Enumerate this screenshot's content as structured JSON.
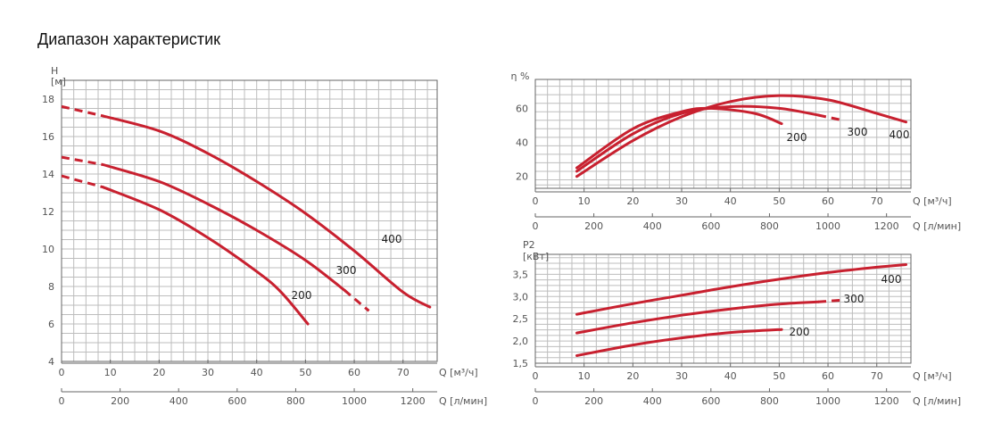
{
  "page": {
    "title": "Диапазон характеристик"
  },
  "colors": {
    "curve": "#c8202f",
    "grid": "#bdbdbd",
    "frame": "#666666"
  },
  "chart_data": [
    {
      "id": "head",
      "type": "line",
      "ylabel_lines": [
        "H",
        "[м]"
      ],
      "xlabel": "Q [м³/ч]",
      "xlabel2": "Q [л/мин]",
      "xlim": [
        0,
        77
      ],
      "ylim": [
        4,
        19
      ],
      "xticks": [
        0,
        10,
        20,
        30,
        40,
        50,
        60,
        70
      ],
      "yticks": [
        4,
        6,
        8,
        10,
        12,
        14,
        16,
        18
      ],
      "ytick_labels": [
        "4",
        "6",
        "8",
        "10",
        "12",
        "14",
        "16",
        "18"
      ],
      "x2ticks": [
        0,
        200,
        400,
        600,
        800,
        1000,
        1200
      ],
      "series": [
        {
          "name": "400",
          "solid": [
            [
              8.5,
              17.1
            ],
            [
              20,
              16.3
            ],
            [
              30,
              15.1
            ],
            [
              40,
              13.6
            ],
            [
              50,
              11.9
            ],
            [
              60,
              9.9
            ],
            [
              70,
              7.7
            ],
            [
              75.5,
              6.9
            ]
          ],
          "dashed": [
            [
              0,
              17.6
            ],
            [
              8.5,
              17.1
            ]
          ]
        },
        {
          "name": "300",
          "solid": [
            [
              8.5,
              14.5
            ],
            [
              20,
              13.6
            ],
            [
              30,
              12.4
            ],
            [
              40,
              11.0
            ],
            [
              50,
              9.4
            ],
            [
              58,
              7.8
            ]
          ],
          "dashed": [
            [
              0,
              14.9
            ],
            [
              8.5,
              14.5
            ]
          ],
          "dashed_end": [
            [
              58,
              7.8
            ],
            [
              63,
              6.7
            ]
          ]
        },
        {
          "name": "200",
          "solid": [
            [
              8.5,
              13.3
            ],
            [
              20,
              12.1
            ],
            [
              30,
              10.6
            ],
            [
              40,
              8.8
            ],
            [
              45,
              7.7
            ],
            [
              50.5,
              6.0
            ]
          ],
          "dashed": [
            [
              0,
              13.9
            ],
            [
              8.5,
              13.3
            ]
          ]
        }
      ]
    },
    {
      "id": "efficiency",
      "type": "line",
      "ylabel_lines": [
        "η %"
      ],
      "xlabel": "Q [м³/ч]",
      "xlabel2": "Q [л/мин]",
      "xlim": [
        0,
        77
      ],
      "ylim": [
        13,
        77
      ],
      "xticks": [
        0,
        10,
        20,
        30,
        40,
        50,
        60,
        70
      ],
      "yticks": [
        20,
        40,
        60
      ],
      "ytick_labels": [
        "20",
        "40",
        "60"
      ],
      "x2ticks": [
        0,
        200,
        400,
        600,
        800,
        1000,
        1200
      ],
      "series": [
        {
          "name": "400",
          "solid": [
            [
              8.5,
              20
            ],
            [
              20,
              41
            ],
            [
              30,
              55
            ],
            [
              40,
              64
            ],
            [
              50,
              67.5
            ],
            [
              60,
              65
            ],
            [
              70,
              57
            ],
            [
              76,
              52
            ]
          ]
        },
        {
          "name": "300",
          "solid": [
            [
              8.5,
              23
            ],
            [
              20,
              45
            ],
            [
              30,
              57
            ],
            [
              40,
              61
            ],
            [
              50,
              60
            ],
            [
              58,
              56
            ]
          ],
          "dashed_end": [
            [
              58,
              56
            ],
            [
              63,
              53
            ]
          ]
        },
        {
          "name": "200",
          "solid": [
            [
              8.5,
              25
            ],
            [
              20,
              48
            ],
            [
              30,
              58
            ],
            [
              36,
              60
            ],
            [
              45,
              57
            ],
            [
              50.5,
              51
            ]
          ]
        }
      ]
    },
    {
      "id": "power",
      "type": "line",
      "ylabel_lines": [
        "P2",
        "[кВт]"
      ],
      "xlabel": "Q [м³/ч]",
      "xlabel2": "Q [л/мин]",
      "xlim": [
        0,
        77
      ],
      "ylim": [
        1.5,
        3.95
      ],
      "xticks": [
        0,
        10,
        20,
        30,
        40,
        50,
        60,
        70
      ],
      "yticks": [
        1.5,
        2.0,
        2.5,
        3.0,
        3.5
      ],
      "ytick_labels": [
        "1,5",
        "2,0",
        "2,5",
        "3,0",
        "3,5"
      ],
      "x2ticks": [
        0,
        200,
        400,
        600,
        800,
        1000,
        1200
      ],
      "series": [
        {
          "name": "400",
          "solid": [
            [
              8.5,
              2.6
            ],
            [
              20,
              2.84
            ],
            [
              30,
              3.03
            ],
            [
              40,
              3.22
            ],
            [
              50,
              3.39
            ],
            [
              60,
              3.54
            ],
            [
              70,
              3.66
            ],
            [
              76,
              3.72
            ]
          ]
        },
        {
          "name": "300",
          "solid": [
            [
              8.5,
              2.18
            ],
            [
              20,
              2.41
            ],
            [
              30,
              2.58
            ],
            [
              40,
              2.72
            ],
            [
              50,
              2.83
            ],
            [
              58,
              2.88
            ]
          ],
          "dashed_end": [
            [
              58,
              2.88
            ],
            [
              63,
              2.92
            ]
          ]
        },
        {
          "name": "200",
          "solid": [
            [
              8.5,
              1.67
            ],
            [
              20,
              1.91
            ],
            [
              30,
              2.07
            ],
            [
              40,
              2.19
            ],
            [
              50.5,
              2.26
            ]
          ]
        }
      ]
    }
  ]
}
